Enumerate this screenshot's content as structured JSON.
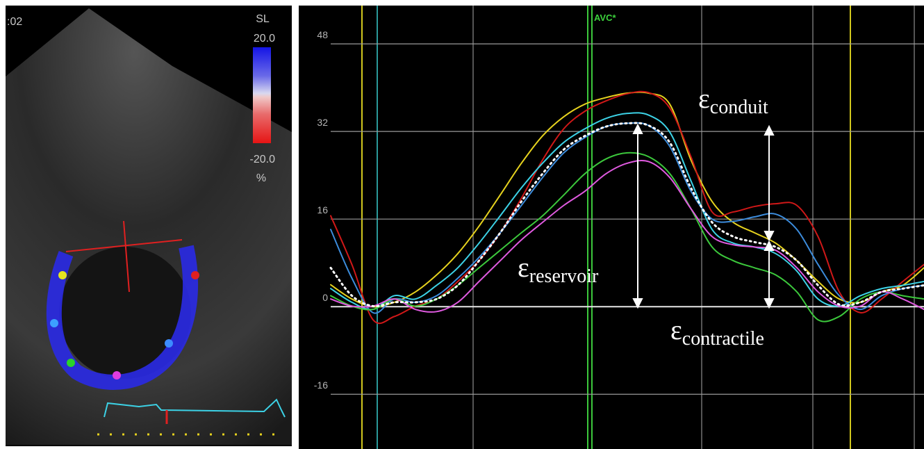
{
  "echo_panel": {
    "time_label": ":02",
    "colorbar": {
      "title": "SL",
      "max": "20.0",
      "min": "-20.0",
      "unit": "%"
    }
  },
  "chart_data": {
    "type": "line",
    "categories": [
      null,
      null,
      null,
      null,
      null,
      null,
      null,
      null,
      null,
      null,
      null,
      null,
      null,
      null,
      null,
      null,
      null,
      null,
      null,
      null,
      null,
      null,
      null,
      null,
      null,
      null,
      null,
      null,
      null
    ],
    "ylim": [
      -26,
      55
    ],
    "yticks": [
      -16,
      0,
      16,
      32,
      48
    ],
    "grid": true,
    "annotations": {
      "marker": "AVC*",
      "conduit": {
        "symbol": "ε",
        "subscript": "conduit"
      },
      "reservoir": {
        "symbol": "ε",
        "subscript": "reservoir"
      },
      "contractile": {
        "symbol": "ε",
        "subscript": "contractile"
      }
    },
    "series": [
      {
        "color": "#e6d21e",
        "values": [
          4,
          1.4,
          0,
          0.8,
          2.7,
          5.8,
          9.7,
          14.7,
          20.4,
          26.2,
          31.2,
          34.7,
          37,
          38.2,
          39,
          39,
          37,
          26.8,
          19.2,
          15.4,
          13.5,
          11.6,
          8.4,
          4.6,
          1.4,
          0.8,
          2.7,
          3.9,
          7.1
        ]
      },
      {
        "color": "#d01818",
        "values": [
          16.6,
          7.7,
          -2.4,
          -1.8,
          0.1,
          1.4,
          4.6,
          8.4,
          13.5,
          19.8,
          26.8,
          32.5,
          35.7,
          37.6,
          38.9,
          39.1,
          36.3,
          27.4,
          17.3,
          17.3,
          18.3,
          18.8,
          18.5,
          12.8,
          2.7,
          -1.1,
          1.4,
          4.6,
          7.7
        ]
      },
      {
        "color": "#3cd2e6",
        "values": [
          3.3,
          0.8,
          -0.5,
          2,
          1.4,
          3.9,
          7.1,
          11.6,
          16.6,
          21.7,
          26.2,
          30,
          32.5,
          34.4,
          35.3,
          35,
          31.9,
          23,
          14.1,
          11.6,
          10.9,
          9.7,
          6.5,
          1.4,
          0.1,
          2,
          3.3,
          3.9,
          4.6
        ]
      },
      {
        "color": "#3c8cdc",
        "values": [
          14.1,
          5.2,
          -1.1,
          1.4,
          0.8,
          2,
          5.2,
          9,
          13.5,
          18.5,
          23.6,
          28.1,
          30.9,
          32.9,
          33.5,
          33.1,
          29.3,
          21.1,
          16,
          15.6,
          16.4,
          16.9,
          14.1,
          7.7,
          2,
          -0.5,
          2,
          3.3,
          3.9
        ]
      },
      {
        "color": "#3cc83c",
        "values": [
          2,
          0.1,
          -0.5,
          1.4,
          0.1,
          1.4,
          3.9,
          7.1,
          10.3,
          13.5,
          16.6,
          20.4,
          24.3,
          27,
          28.1,
          27.4,
          24.3,
          17.9,
          10.9,
          8.4,
          7.1,
          5.8,
          2.7,
          -2.4,
          -1.8,
          1.4,
          2.7,
          2,
          1.4
        ]
      },
      {
        "color": "#e05ae0",
        "values": [
          1.4,
          0.1,
          0.1,
          1.4,
          -0.5,
          -0.9,
          0.8,
          4.6,
          8.4,
          12.2,
          15.4,
          18.5,
          21.1,
          24.3,
          26.2,
          26.5,
          23.6,
          17.9,
          12.8,
          11.3,
          10.9,
          10.3,
          7.1,
          2.7,
          0.1,
          0.1,
          2.7,
          1.4,
          -0.5
        ]
      },
      {
        "color": "#ffffff",
        "dash": "dotted",
        "values": [
          7.1,
          2,
          0.1,
          0.8,
          0.8,
          1.4,
          3.9,
          8.4,
          13.5,
          19.2,
          24.3,
          28.7,
          31.2,
          32.9,
          33.5,
          33.1,
          30,
          21.7,
          15.4,
          12.8,
          11.8,
          10.9,
          8.4,
          3.9,
          0.4,
          0.8,
          2.7,
          3.3,
          3.9
        ]
      }
    ]
  }
}
